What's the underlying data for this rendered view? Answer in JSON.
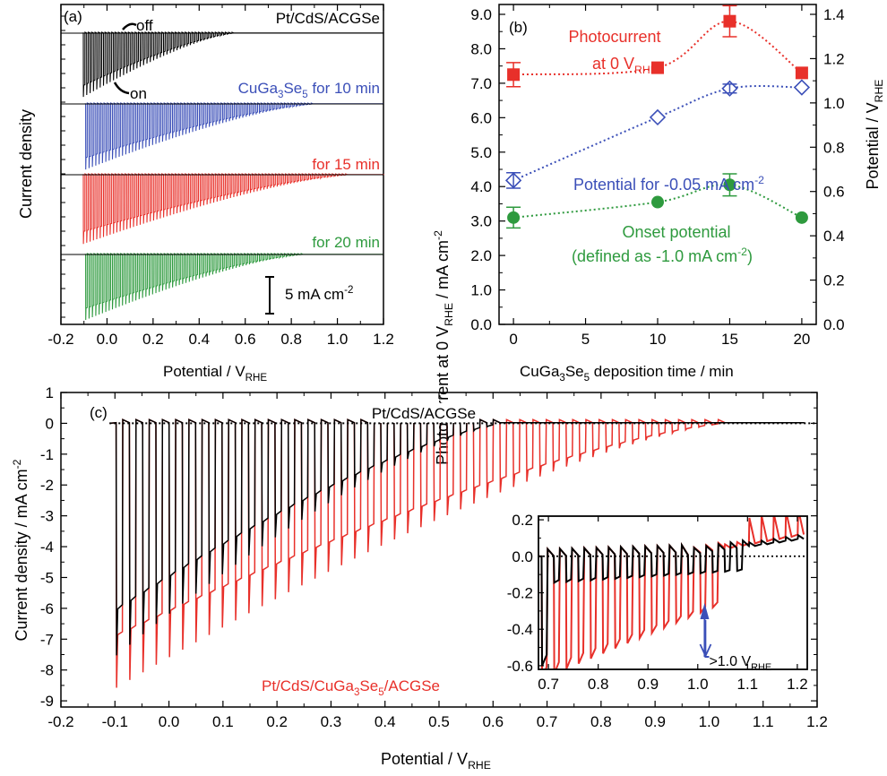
{
  "chart_data": [
    {
      "panel": "(a)",
      "type": "line",
      "xlabel": "Potential / V",
      "xlabel_sub": "RHE",
      "ylabel": "Current density",
      "xlim": [
        -0.2,
        1.2
      ],
      "xticks": [
        "-0.2",
        "0.0",
        "0.2",
        "0.4",
        "0.6",
        "0.8",
        "1.0",
        "1.2"
      ],
      "chopped_light": true,
      "annotations": {
        "off": "off",
        "on": "on",
        "scale_bar": "5 mA cm",
        "scale_bar_sup": "-2",
        "scale_bar_value": 5
      },
      "series": [
        {
          "name": "Pt/CdS/ACGSe",
          "name_parts": [
            [
              "Pt/CdS/ACGSe",
              "n"
            ]
          ],
          "color": "#000000",
          "x_start": -0.11,
          "onset": 0.55,
          "jmax": -8.8
        },
        {
          "name": "CuGa3Se5 for 10 min",
          "name_parts": [
            [
              "CuGa",
              "n"
            ],
            [
              "3",
              "sub"
            ],
            [
              "Se",
              "n"
            ],
            [
              "5",
              "sub"
            ],
            [
              " for 10 min",
              "n"
            ]
          ],
          "color": "#3b4fb8",
          "x_start": -0.1,
          "onset": 0.9,
          "jmax": -9.0
        },
        {
          "name": "for 15 min",
          "name_parts": [
            [
              "for 15 min",
              "n"
            ]
          ],
          "color": "#e8302a",
          "x_start": -0.11,
          "onset": 1.05,
          "jmax": -9.5
        },
        {
          "name": "for 20 min",
          "name_parts": [
            [
              "for 20 min",
              "n"
            ]
          ],
          "color": "#2e9a3e",
          "x_start": -0.1,
          "onset": 0.85,
          "jmax": -9.0
        }
      ]
    },
    {
      "panel": "(b)",
      "type": "scatter",
      "xlabel": "CuGa3Se5 deposition time / min",
      "xlabel_parts": [
        [
          "CuGa",
          "n"
        ],
        [
          "3",
          "sub"
        ],
        [
          "Se",
          "n"
        ],
        [
          "5",
          "sub"
        ],
        [
          " deposition time / min",
          "n"
        ]
      ],
      "ylabel_left": "Photocurrent at 0 V",
      "ylabel_left_sub": "RHE",
      "ylabel_left_tail": " / mA cm",
      "ylabel_left_sup": "-2",
      "ylabel_right": "Potential / V",
      "ylabel_right_sub": "RHE",
      "xlim": [
        -1,
        21
      ],
      "xticks": [
        0,
        5,
        10,
        15,
        20
      ],
      "ylim_left": [
        0,
        9.0
      ],
      "yticks_left": [
        "0.0",
        "1.0",
        "2.0",
        "3.0",
        "4.0",
        "5.0",
        "6.0",
        "7.0",
        "8.0",
        "9.0"
      ],
      "ylim_right": [
        0,
        1.4
      ],
      "yticks_right": [
        "0.0",
        "0.2",
        "0.4",
        "0.6",
        "0.8",
        "1.0",
        "1.2",
        "1.4"
      ],
      "series": [
        {
          "name": "Photocurrent at 0 V RHE",
          "label_lines": [
            "Photocurrent",
            "at 0 V"
          ],
          "label_sub": "RHE",
          "axis": "left",
          "marker": "square",
          "color": "#e8302a",
          "x": [
            0,
            10,
            15,
            20
          ],
          "y": [
            7.25,
            7.45,
            8.8,
            7.3
          ],
          "err": [
            0.35,
            0,
            0.45,
            0
          ]
        },
        {
          "name": "Potential for -0.05 mA cm-2",
          "label_lines": [
            "Potential for -0.05 mA cm"
          ],
          "label_sup": "-2",
          "axis": "right",
          "marker": "diamond-open",
          "color": "#3b4fb8",
          "x": [
            0,
            10,
            15,
            20
          ],
          "y": [
            0.65,
            0.935,
            1.065,
            1.07
          ],
          "err": [
            0.035,
            0,
            0.02,
            0
          ]
        },
        {
          "name": "Onset potential (defined as -1.0 mA cm-2)",
          "label_lines": [
            "Onset potential",
            "(defined as -1.0 mA cm"
          ],
          "label_sup": "-2",
          "label_tail": ")",
          "axis": "left",
          "marker": "circle",
          "color": "#2e9a3e",
          "x": [
            0,
            10,
            15,
            20
          ],
          "y": [
            3.1,
            3.55,
            4.05,
            3.1
          ],
          "err": [
            0.3,
            0,
            0.32,
            0
          ]
        }
      ]
    },
    {
      "panel": "(c)",
      "type": "line",
      "xlabel": "Potential / V",
      "xlabel_sub": "RHE",
      "ylabel": "Current density / mA cm",
      "ylabel_sup": "-2",
      "xlim": [
        -0.2,
        1.2
      ],
      "xticks": [
        "-0.2",
        "-0.1",
        "0.0",
        "0.1",
        "0.2",
        "0.3",
        "0.4",
        "0.5",
        "0.6",
        "0.7",
        "0.8",
        "0.9",
        "1.0",
        "1.1",
        "1.2"
      ],
      "ylim": [
        -9.2,
        1.0
      ],
      "yticks": [
        "1",
        "0",
        "-1",
        "-2",
        "-3",
        "-4",
        "-5",
        "-6",
        "-7",
        "-8",
        "-9"
      ],
      "series": [
        {
          "name": "Pt/CdS/ACGSe",
          "name_parts": [
            [
              "Pt/CdS/ACGSe",
              "n"
            ]
          ],
          "color": "#000000",
          "x_start": -0.11,
          "onset": 0.62,
          "jmax": -7.7,
          "dark_end": 0.08
        },
        {
          "name": "Pt/CdS/CuGa3Se5/ACGSe",
          "name_parts": [
            [
              "Pt/CdS/CuGa",
              "n"
            ],
            [
              "3",
              "sub"
            ],
            [
              "Se",
              "n"
            ],
            [
              "5",
              "sub"
            ],
            [
              "/ACGSe",
              "n"
            ]
          ],
          "color": "#e8302a",
          "x_start": -0.11,
          "onset": 1.03,
          "jmax": -8.7,
          "dark_end": 0.14
        }
      ],
      "inset": {
        "xlim": [
          0.68,
          1.22
        ],
        "ylim": [
          -0.62,
          0.22
        ],
        "xticks": [
          "0.7",
          "0.8",
          "0.9",
          "1.0",
          "1.1",
          "1.2"
        ],
        "yticks": [
          "0.2",
          "0.0",
          "-0.2",
          "-0.4",
          "-0.6"
        ],
        "annotation": ">1.0 V",
        "annotation_sub": "RHE",
        "arrow_x": 1.03
      }
    }
  ],
  "colors": {
    "black": "#000000",
    "blue": "#3b4fb8",
    "red": "#e8302a",
    "green": "#2e9a3e"
  }
}
